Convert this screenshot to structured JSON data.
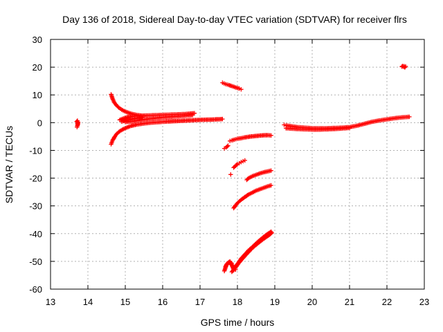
{
  "chart_data": {
    "type": "scatter",
    "title": "Day 136 of 2018, Sidereal Day-to-day VTEC variation (SDTVAR) for receiver flrs",
    "xlabel": "GPS time / hours",
    "ylabel": "SDTVAR / TECUs",
    "xlim": [
      13,
      23
    ],
    "ylim": [
      -60,
      30
    ],
    "xticks": [
      13,
      14,
      15,
      16,
      17,
      18,
      19,
      20,
      21,
      22,
      23
    ],
    "yticks": [
      -60,
      -50,
      -40,
      -30,
      -20,
      -10,
      0,
      10,
      20,
      30
    ],
    "grid": true,
    "marker": "plus",
    "color": "#ff0000",
    "series": [
      {
        "x": [
          13.7,
          13.72,
          13.74,
          13.71,
          13.73,
          13.72
        ],
        "y": [
          0.4,
          -0.3,
          0.1,
          -1.6,
          -0.6,
          0.7
        ]
      },
      {
        "x": [
          14.62,
          14.66,
          14.7,
          14.76,
          14.83,
          14.9,
          15.0,
          15.1,
          15.2,
          15.3,
          15.4,
          15.5
        ],
        "y": [
          10.2,
          8.6,
          7.4,
          6.3,
          5.4,
          4.7,
          4.0,
          3.5,
          3.1,
          2.8,
          2.6,
          2.4
        ]
      },
      {
        "x": [
          14.62,
          14.66,
          14.72,
          14.78,
          14.86,
          14.95,
          15.05,
          15.15,
          15.3,
          15.5,
          15.7,
          15.9,
          16.1,
          16.4,
          16.7,
          17.0,
          17.3,
          17.6
        ],
        "y": [
          -7.8,
          -6.4,
          -5.0,
          -3.9,
          -3.0,
          -2.3,
          -1.7,
          -1.2,
          -0.7,
          -0.3,
          0.0,
          0.2,
          0.4,
          0.6,
          0.8,
          1.0,
          1.1,
          1.3
        ]
      },
      {
        "x": [
          14.85,
          14.95,
          15.05,
          15.2,
          15.4,
          15.6,
          15.8,
          16.0,
          16.2,
          16.4,
          16.6,
          16.85
        ],
        "y": [
          1.0,
          1.5,
          2.0,
          2.3,
          2.5,
          2.6,
          2.7,
          2.8,
          2.9,
          3.0,
          3.1,
          3.4
        ]
      },
      {
        "x": [
          14.9,
          15.0,
          15.1,
          15.2,
          15.3,
          15.45
        ],
        "y": [
          0.4,
          0.7,
          1.0,
          1.3,
          1.6,
          1.9
        ]
      },
      {
        "x": [
          15.0,
          15.2,
          15.4,
          15.6,
          15.8,
          16.0,
          16.2,
          16.4,
          16.6,
          16.8
        ],
        "y": [
          0.2,
          0.5,
          0.9,
          1.3,
          1.6,
          1.9,
          2.1,
          2.3,
          2.5,
          2.7
        ]
      },
      {
        "x": [
          17.6,
          17.68,
          17.76,
          17.85,
          17.95,
          18.05,
          18.1
        ],
        "y": [
          14.4,
          13.9,
          13.6,
          13.2,
          12.7,
          12.3,
          12.0
        ]
      },
      {
        "x": [
          17.65,
          17.7,
          17.75
        ],
        "y": [
          -9.3,
          -8.9,
          -8.3
        ]
      },
      {
        "x": [
          17.8,
          17.85,
          17.92,
          18.0,
          18.1,
          18.2,
          18.35,
          18.5,
          18.65,
          18.8,
          18.9
        ],
        "y": [
          -6.6,
          -6.4,
          -6.1,
          -5.8,
          -5.6,
          -5.3,
          -5.0,
          -4.8,
          -4.6,
          -4.5,
          -4.6
        ]
      },
      {
        "x": [
          17.9,
          17.95,
          18.0,
          18.05,
          18.1,
          18.15,
          18.2
        ],
        "y": [
          -16.2,
          -15.5,
          -15.0,
          -14.6,
          -14.2,
          -13.9,
          -13.6
        ]
      },
      {
        "x": [
          17.82
        ],
        "y": [
          -18.7
        ]
      },
      {
        "x": [
          18.25,
          18.3,
          18.4,
          18.5,
          18.6,
          18.7,
          18.8,
          18.9
        ],
        "y": [
          -20.6,
          -20.0,
          -19.3,
          -18.8,
          -18.3,
          -17.9,
          -17.6,
          -17.3
        ]
      },
      {
        "x": [
          17.9,
          17.95,
          18.0,
          18.1,
          18.2,
          18.3,
          18.4,
          18.5,
          18.6,
          18.7,
          18.8,
          18.9
        ],
        "y": [
          -30.8,
          -29.8,
          -29.0,
          -27.8,
          -26.8,
          -25.9,
          -25.2,
          -24.5,
          -24.0,
          -23.5,
          -23.0,
          -22.6
        ]
      },
      {
        "x": [
          17.65,
          17.7,
          17.75,
          17.8,
          17.85,
          17.9,
          18.0,
          18.1,
          18.2,
          18.3,
          18.4,
          18.5,
          18.6,
          18.7,
          18.8,
          18.9
        ],
        "y": [
          -53.5,
          -51.5,
          -50.5,
          -50.0,
          -51.5,
          -52.5,
          -51.0,
          -49.0,
          -47.5,
          -46.0,
          -44.8,
          -43.5,
          -42.3,
          -41.2,
          -40.2,
          -39.3
        ]
      },
      {
        "x": [
          17.68,
          17.72,
          17.78,
          17.84,
          17.9,
          17.95
        ],
        "y": [
          -52.0,
          -50.8,
          -50.3,
          -50.6,
          -53.2,
          -53.0
        ]
      },
      {
        "x": [
          17.85,
          17.95,
          18.05,
          18.15,
          18.25,
          18.35,
          18.45,
          18.55,
          18.65,
          18.75,
          18.85,
          18.92
        ],
        "y": [
          -53.8,
          -52.2,
          -50.4,
          -48.8,
          -47.3,
          -45.9,
          -44.6,
          -43.5,
          -42.4,
          -41.4,
          -40.5,
          -39.7
        ]
      },
      {
        "x": [
          19.25,
          19.3,
          19.4,
          19.5,
          19.6,
          19.7,
          19.8,
          19.9,
          20.0,
          20.2,
          20.4,
          20.6,
          20.8,
          21.0,
          21.2,
          21.4,
          21.6,
          21.8,
          22.0,
          22.2,
          22.4,
          22.6
        ],
        "y": [
          -0.8,
          -1.0,
          -1.2,
          -1.4,
          -1.6,
          -1.7,
          -1.8,
          -1.9,
          -2.0,
          -2.0,
          -2.0,
          -1.9,
          -1.8,
          -1.6,
          -1.1,
          -0.4,
          0.3,
          0.8,
          1.2,
          1.6,
          1.9,
          2.1
        ]
      },
      {
        "x": [
          19.3,
          19.4,
          19.5,
          19.6,
          19.8,
          20.0,
          20.2,
          20.4,
          20.6,
          20.8,
          21.0
        ],
        "y": [
          -2.0,
          -2.1,
          -2.2,
          -2.3,
          -2.4,
          -2.5,
          -2.5,
          -2.4,
          -2.3,
          -2.1,
          -1.9
        ]
      },
      {
        "x": [
          22.4,
          22.45,
          22.5,
          22.42,
          22.48
        ],
        "y": [
          20.2,
          20.1,
          20.3,
          20.4,
          19.9
        ]
      }
    ]
  }
}
